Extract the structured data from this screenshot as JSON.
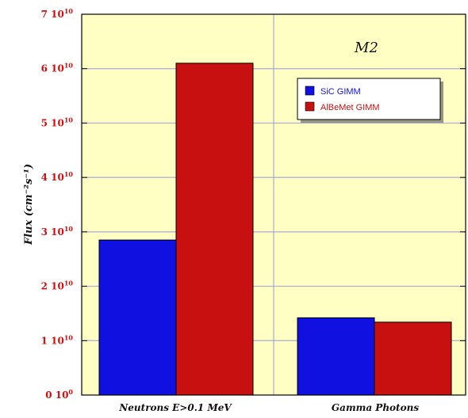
{
  "chart_data": {
    "type": "bar",
    "title": "M2",
    "ylabel": "Flux (cm⁻²s⁻¹)",
    "ylim": [
      0,
      70000000000.0
    ],
    "yticks": [
      0,
      10000000000.0,
      20000000000.0,
      30000000000.0,
      40000000000.0,
      50000000000.0,
      60000000000.0,
      70000000000.0
    ],
    "ytick_labels": [
      {
        "mant": "0 10",
        "exp": "0"
      },
      {
        "mant": "1 10",
        "exp": "10"
      },
      {
        "mant": "2 10",
        "exp": "10"
      },
      {
        "mant": "3 10",
        "exp": "10"
      },
      {
        "mant": "4 10",
        "exp": "10"
      },
      {
        "mant": "5 10",
        "exp": "10"
      },
      {
        "mant": "6 10",
        "exp": "10"
      },
      {
        "mant": "7 10",
        "exp": "10"
      }
    ],
    "categories": [
      "Neutrons E>0.1 MeV",
      "Gamma Photons"
    ],
    "series": [
      {
        "name": "SiC GIMM",
        "color": "#1010e0",
        "values": [
          28500000000.0,
          14200000000.0
        ]
      },
      {
        "name": "AlBeMet GIMM",
        "color": "#c81010",
        "values": [
          61000000000.0,
          13400000000.0
        ]
      }
    ],
    "grid": true,
    "legend": "top-right",
    "plot_background": "#ffffc4"
  }
}
